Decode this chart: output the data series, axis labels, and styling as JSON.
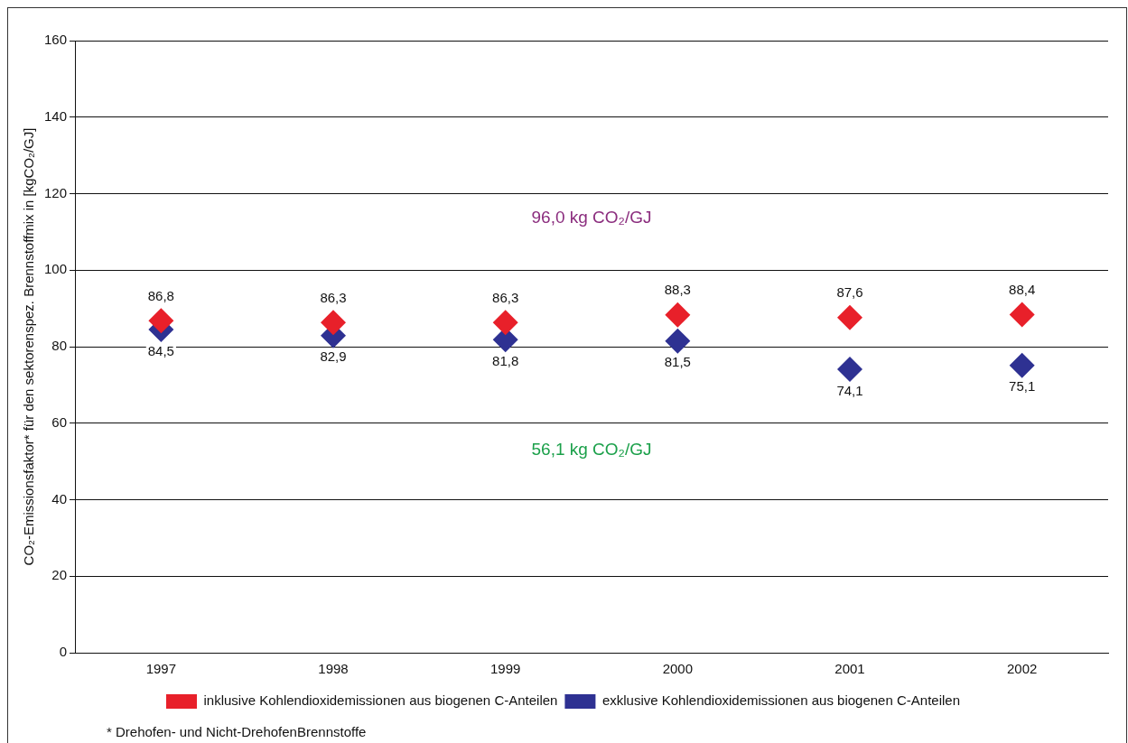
{
  "chart_data": {
    "type": "scatter",
    "ylabel": "CO₂-Emissionsfaktor* für den sektorenspez. Brennstoffmix in [kgCO₂/GJ]",
    "categories": [
      "1997",
      "1998",
      "1999",
      "2000",
      "2001",
      "2002"
    ],
    "series": [
      {
        "name": "inklusive Kohlendioxidemissionen aus biogenen C-Anteilen",
        "color": "#e8202a",
        "values": [
          86.8,
          86.3,
          86.3,
          88.3,
          87.6,
          88.4
        ],
        "value_labels": [
          "86,8",
          "86,3",
          "86,3",
          "88,3",
          "87,6",
          "88,4"
        ]
      },
      {
        "name": "exklusive Kohlendioxidemissionen aus biogenen C-Anteilen",
        "color": "#2e3192",
        "values": [
          84.5,
          82.9,
          81.8,
          81.5,
          74.1,
          75.1
        ],
        "value_labels": [
          "84,5",
          "82,9",
          "81,8",
          "81,5",
          "74,1",
          "75,1"
        ]
      }
    ],
    "annotations": [
      "96,0 kg CO₂/GJ",
      "56,1 kg CO₂/GJ",
      "* Drehofen- und Nicht-DrehofenBrennstoffe"
    ],
    "ylim": [
      0,
      160
    ],
    "yticks": [
      0,
      20,
      40,
      60,
      80,
      100,
      120,
      140,
      160
    ],
    "grid": "y",
    "legend": "bottom",
    "marker": "diamond"
  }
}
